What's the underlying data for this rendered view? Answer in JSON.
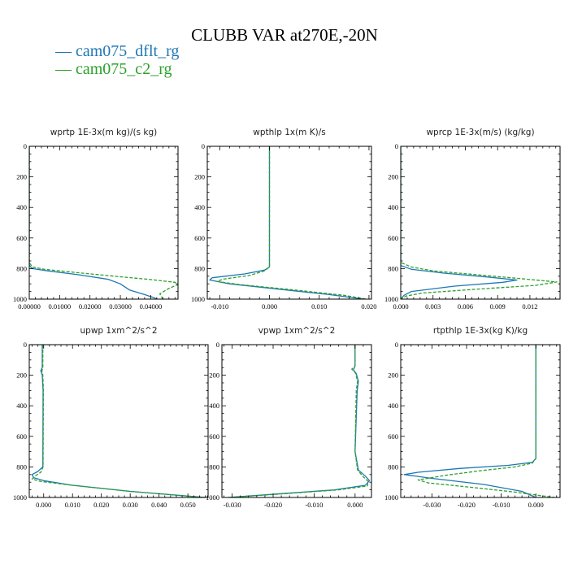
{
  "figure": {
    "title": "CLUBB VAR at270E,-20N",
    "legend": [
      {
        "label": "— cam075_dflt_rg",
        "color": "#1f77b4"
      },
      {
        "label": "— cam075_c2_rg",
        "color": "#2ca02c"
      }
    ]
  },
  "chart_data": [
    {
      "type": "line",
      "title": "wprtp  1E-3x(m kg)/(s kg)",
      "xlim": [
        0,
        0.049
      ],
      "ylim": [
        1000,
        0
      ],
      "xticks": [
        0,
        0.01,
        0.02,
        0.03,
        0.04
      ],
      "xtick_labels": [
        "0.00000",
        "0.01000",
        "0.02000",
        "0.03000",
        "0.04000"
      ],
      "yticks": [
        0,
        200,
        400,
        600,
        800,
        1000
      ],
      "ytick_labels": [
        "0",
        "200",
        "400",
        "600",
        "800",
        "1000"
      ],
      "series": [
        {
          "name": "cam075_dflt_rg",
          "color": "#1f77b4",
          "dash": "",
          "x": [
            0,
            0,
            0,
            0.001,
            0.006,
            0.016,
            0.026,
            0.03,
            0.033,
            0.038,
            0.041,
            0.042
          ],
          "y": [
            0,
            700,
            780,
            800,
            815,
            840,
            870,
            900,
            940,
            970,
            990,
            1000
          ]
        },
        {
          "name": "cam075_c2_rg",
          "color": "#2ca02c",
          "dash": "4,2",
          "x": [
            0,
            0,
            0,
            0.001,
            0.005,
            0.015,
            0.028,
            0.04,
            0.048,
            0.049,
            0.046,
            0.043,
            0.044
          ],
          "y": [
            0,
            700,
            760,
            790,
            805,
            825,
            850,
            872,
            890,
            905,
            930,
            965,
            1000
          ]
        }
      ]
    },
    {
      "type": "line",
      "title": "wpthlp  1x(m K)/s",
      "xlim": [
        -0.0125,
        0.0205
      ],
      "ylim": [
        1000,
        0
      ],
      "xticks": [
        -0.01,
        0,
        0.01,
        0.02
      ],
      "xtick_labels": [
        "-0.010",
        "0.000",
        "0.010",
        "0.020"
      ],
      "yticks": [
        0,
        200,
        400,
        600,
        800,
        1000
      ],
      "ytick_labels": [
        "0",
        "200",
        "400",
        "600",
        "800",
        "1000"
      ],
      "series": [
        {
          "name": "cam075_dflt_rg",
          "color": "#1f77b4",
          "dash": "",
          "x": [
            0,
            0,
            0,
            0,
            -0.001,
            -0.005,
            -0.0115,
            -0.012,
            -0.008,
            0.002,
            0.012,
            0.019
          ],
          "y": [
            0,
            500,
            760,
            790,
            810,
            835,
            860,
            875,
            900,
            935,
            970,
            1000
          ]
        },
        {
          "name": "cam075_c2_rg",
          "color": "#2ca02c",
          "dash": "4,2",
          "x": [
            0,
            0,
            0,
            0,
            -0.001,
            -0.004,
            -0.0095,
            -0.0105,
            -0.006,
            0.005,
            0.015,
            0.0195
          ],
          "y": [
            0,
            500,
            760,
            790,
            815,
            845,
            870,
            885,
            905,
            940,
            975,
            1000
          ]
        }
      ]
    },
    {
      "type": "line",
      "title": "wprcp  1E-3x(m/s) (kg/kg)",
      "xlim": [
        0,
        0.0148
      ],
      "ylim": [
        1000,
        0
      ],
      "xticks": [
        0,
        0.003,
        0.006,
        0.009,
        0.012
      ],
      "xtick_labels": [
        "0.000",
        "0.003",
        "0.006",
        "0.009",
        "0.012"
      ],
      "yticks": [
        0,
        200,
        400,
        600,
        800,
        1000
      ],
      "ytick_labels": [
        "0",
        "200",
        "400",
        "600",
        "800",
        "1000"
      ],
      "series": [
        {
          "name": "cam075_dflt_rg",
          "color": "#1f77b4",
          "dash": "",
          "x": [
            0,
            0,
            0,
            0.001,
            0.004,
            0.008,
            0.0108,
            0.0095,
            0.005,
            0.001,
            0.0003,
            0
          ],
          "y": [
            0,
            700,
            780,
            805,
            830,
            855,
            875,
            890,
            915,
            950,
            975,
            1000
          ]
        },
        {
          "name": "cam075_c2_rg",
          "color": "#2ca02c",
          "dash": "4,2",
          "x": [
            0,
            0,
            0,
            0.001,
            0.003,
            0.007,
            0.011,
            0.0145,
            0.0125,
            0.007,
            0.002,
            0.0005,
            0
          ],
          "y": [
            0,
            690,
            760,
            790,
            815,
            840,
            865,
            888,
            910,
            935,
            960,
            980,
            1000
          ]
        }
      ]
    },
    {
      "type": "line",
      "title": "upwp  1xm^2/s^2",
      "xlim": [
        -0.005,
        0.057
      ],
      "ylim": [
        1000,
        0
      ],
      "xticks": [
        0,
        0.01,
        0.02,
        0.03,
        0.04,
        0.05
      ],
      "xtick_labels": [
        "0.000",
        "0.010",
        "0.020",
        "0.030",
        "0.040",
        "0.050"
      ],
      "yticks": [
        0,
        200,
        400,
        600,
        800,
        1000
      ],
      "ytick_labels": [
        "0",
        "200",
        "400",
        "600",
        "800",
        "1000"
      ],
      "series": [
        {
          "name": "cam075_dflt_rg",
          "color": "#1f77b4",
          "dash": "",
          "x": [
            -0.0005,
            -0.0005,
            -0.001,
            -0.0005,
            -0.0002,
            -0.0003,
            -0.002,
            -0.004,
            -0.0035,
            0.0,
            0.01,
            0.03,
            0.056
          ],
          "y": [
            0,
            150,
            170,
            200,
            300,
            800,
            830,
            850,
            870,
            890,
            920,
            960,
            1000
          ]
        },
        {
          "name": "cam075_c2_rg",
          "color": "#2ca02c",
          "dash": "4,2",
          "x": [
            -0.0003,
            -0.0003,
            -0.0006,
            -0.0003,
            -0.0001,
            -0.0002,
            -0.001,
            -0.003,
            -0.004,
            -0.001,
            0.01,
            0.03,
            0.056
          ],
          "y": [
            0,
            150,
            170,
            200,
            300,
            800,
            835,
            860,
            880,
            895,
            920,
            960,
            1000
          ]
        }
      ]
    },
    {
      "type": "line",
      "title": "vpwp  1xm^2/s^2",
      "xlim": [
        -0.0325,
        0.004
      ],
      "ylim": [
        1000,
        0
      ],
      "xticks": [
        -0.03,
        -0.02,
        -0.01,
        0
      ],
      "xtick_labels": [
        "-0.030",
        "-0.020",
        "-0.010",
        "0.000"
      ],
      "yticks": [
        0,
        200,
        400,
        600,
        800,
        1000
      ],
      "ytick_labels": [
        "0",
        "200",
        "400",
        "600",
        "800",
        "1000"
      ],
      "series": [
        {
          "name": "cam075_dflt_rg",
          "color": "#1f77b4",
          "dash": "",
          "x": [
            0,
            0,
            -0.0004,
            0.0003,
            0.0008,
            0.0005,
            0,
            0.0008,
            0.0025,
            0.0035,
            0.0025,
            -0.005,
            -0.018,
            -0.031
          ],
          "y": [
            0,
            140,
            165,
            190,
            240,
            300,
            700,
            820,
            860,
            890,
            920,
            950,
            975,
            1000
          ]
        },
        {
          "name": "cam075_c2_rg",
          "color": "#2ca02c",
          "dash": "4,2",
          "x": [
            0,
            0,
            -0.0008,
            0.0001,
            0.0006,
            0.0003,
            0,
            0.0006,
            0.002,
            0.0032,
            0.003,
            -0.004,
            -0.017,
            -0.031
          ],
          "y": [
            0,
            140,
            160,
            185,
            240,
            300,
            700,
            820,
            865,
            895,
            925,
            950,
            975,
            1000
          ]
        }
      ]
    },
    {
      "type": "line",
      "title": "rtpthlp  1E-3x(kg K)/kg",
      "xlim": [
        -0.039,
        0.007
      ],
      "ylim": [
        1000,
        0
      ],
      "xticks": [
        -0.03,
        -0.02,
        -0.01,
        0
      ],
      "xtick_labels": [
        "-0.030",
        "-0.020",
        "-0.010",
        "0.000"
      ],
      "yticks": [
        0,
        200,
        400,
        600,
        800,
        1000
      ],
      "ytick_labels": [
        "0",
        "200",
        "400",
        "600",
        "800",
        "1000"
      ],
      "series": [
        {
          "name": "cam075_dflt_rg",
          "color": "#1f77b4",
          "dash": "",
          "x": [
            0,
            0,
            0,
            -0.001,
            -0.008,
            -0.022,
            -0.034,
            -0.038,
            -0.03,
            -0.015,
            -0.004,
            0
          ],
          "y": [
            0,
            700,
            745,
            770,
            790,
            810,
            835,
            850,
            875,
            915,
            960,
            1000
          ]
        },
        {
          "name": "cam075_c2_rg",
          "color": "#2ca02c",
          "dash": "4,2",
          "x": [
            0,
            0,
            0,
            -0.001,
            -0.006,
            -0.016,
            -0.026,
            -0.034,
            -0.031,
            -0.018,
            -0.006,
            0.002,
            0.0055
          ],
          "y": [
            0,
            700,
            745,
            775,
            800,
            825,
            855,
            885,
            905,
            935,
            965,
            990,
            1000
          ]
        }
      ]
    }
  ]
}
